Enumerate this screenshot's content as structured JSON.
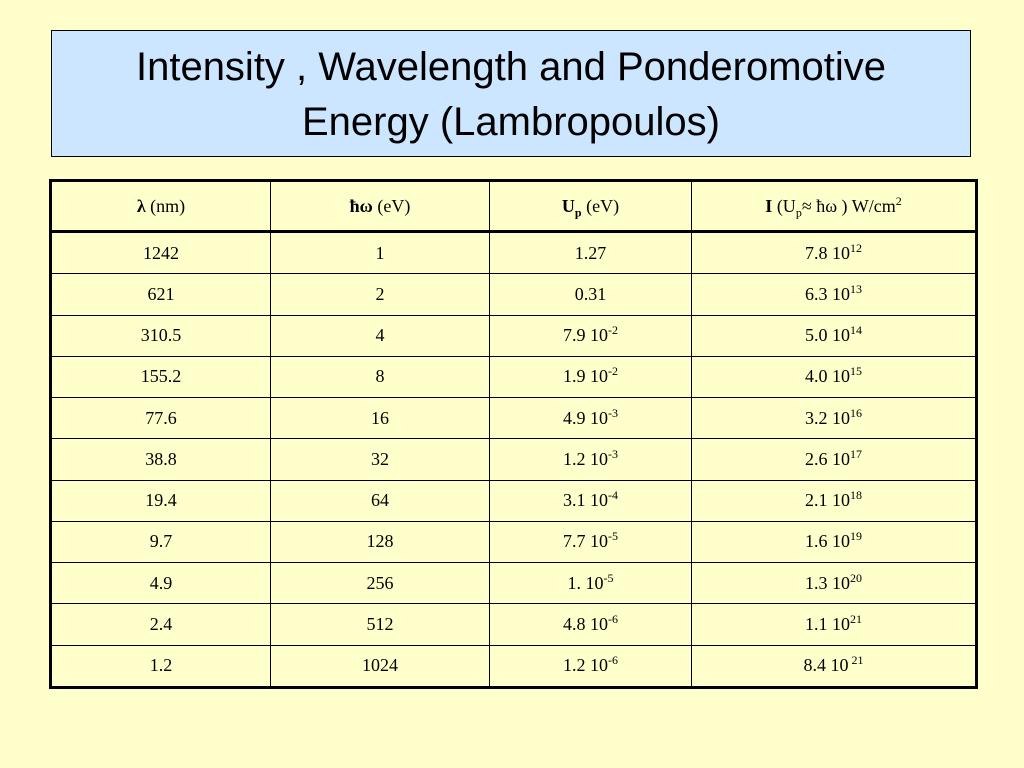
{
  "title": {
    "line1": "Intensity , Wavelength and Ponderomotive",
    "line2": "Energy (Lambropoulos)"
  },
  "table": {
    "headers": {
      "col1": {
        "symbol": "λ",
        "unit": " (nm)"
      },
      "col2": {
        "symbol": "ħω",
        "unit": " (eV)"
      },
      "col3": {
        "symbol": "U",
        "subscript": "p",
        "unit": " (eV)"
      },
      "col4": {
        "symbol": "I",
        "open": " (U",
        "subscript": "p",
        "approx": "≈ ħω ) W/cm",
        "superscript": "2"
      }
    },
    "rows": [
      {
        "lambda": "1242",
        "hw": "1",
        "up_base": "1.27",
        "up_exp": "",
        "i_base": "7.8 10",
        "i_exp": "12"
      },
      {
        "lambda": "621",
        "hw": "2",
        "up_base": "0.31",
        "up_exp": "",
        "i_base": "6.3 10",
        "i_exp": "13"
      },
      {
        "lambda": "310.5",
        "hw": "4",
        "up_base": "7.9 10",
        "up_exp": "-2",
        "i_base": "5.0 10",
        "i_exp": "14"
      },
      {
        "lambda": "155.2",
        "hw": "8",
        "up_base": "1.9 10",
        "up_exp": "-2",
        "i_base": "4.0 10",
        "i_exp": "15"
      },
      {
        "lambda": "77.6",
        "hw": "16",
        "up_base": "4.9 10",
        "up_exp": "-3",
        "i_base": "3.2 10",
        "i_exp": "16"
      },
      {
        "lambda": "38.8",
        "hw": "32",
        "up_base": "1.2 10",
        "up_exp": "-3",
        "i_base": "2.6 10",
        "i_exp": "17"
      },
      {
        "lambda": "19.4",
        "hw": "64",
        "up_base": "3.1 10",
        "up_exp": "-4",
        "i_base": "2.1 10",
        "i_exp": "18"
      },
      {
        "lambda": "9.7",
        "hw": "128",
        "up_base": "7.7 10",
        "up_exp": "-5",
        "i_base": "1.6 10",
        "i_exp": "19"
      },
      {
        "lambda": "4.9",
        "hw": "256",
        "up_base": "1. 10",
        "up_exp": "-5",
        "i_base": "1.3 10",
        "i_exp": "20"
      },
      {
        "lambda": "2.4",
        "hw": "512",
        "up_base": "4.8 10",
        "up_exp": "-6",
        "i_base": "1.1 10",
        "i_exp": "21"
      },
      {
        "lambda": "1.2",
        "hw": "1024",
        "up_base": "1.2 10",
        "up_exp": "-6",
        "i_base": "8.4 10",
        "i_exp": "21",
        "i_exp_gap": true
      }
    ]
  }
}
